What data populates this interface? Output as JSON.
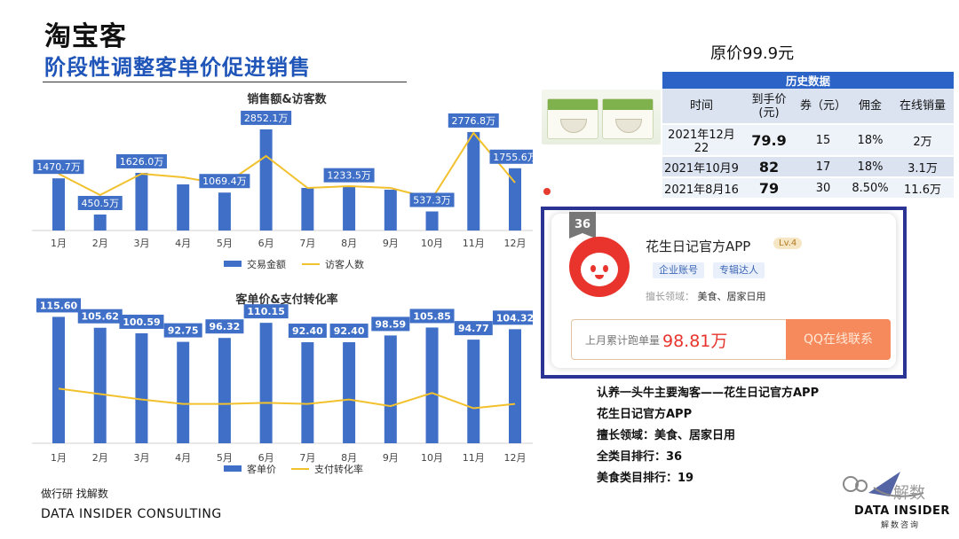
{
  "header": {
    "title": "淘宝客",
    "subtitle": "阶段性调整客单价促进销售"
  },
  "chart_data": [
    {
      "type": "bar",
      "title": "销售额&访客数",
      "categories": [
        "1月",
        "2月",
        "3月",
        "4月",
        "5月",
        "6月",
        "7月",
        "8月",
        "9月",
        "10月",
        "11月",
        "12月"
      ],
      "series": [
        {
          "name": "交易金额",
          "type": "bar",
          "values": [
            1470.7,
            450.5,
            1626.0,
            1300,
            1069.4,
            2852.1,
            1200,
            1233.5,
            1150,
            537.3,
            2776.8,
            1755.6
          ],
          "labels": [
            "1470.7万",
            "450.5万",
            "1626.0万",
            "",
            "1069.4万",
            "2852.1万",
            "",
            "1233.5万",
            "",
            "537.3万",
            "2776.8万",
            "1755.6万"
          ]
        },
        {
          "name": "访客人数",
          "type": "line",
          "values": [
            1600,
            1000,
            1600,
            1500,
            1300,
            2100,
            1200,
            1250,
            1200,
            900,
            2750,
            1350
          ]
        }
      ],
      "colors": {
        "bar": "#3f6fc7",
        "line": "#f2c12e"
      },
      "legend": "bottom",
      "ylim": [
        0,
        3000
      ]
    },
    {
      "type": "bar",
      "title": "客单价&支付转化率",
      "categories": [
        "1月",
        "2月",
        "3月",
        "4月",
        "5月",
        "6月",
        "7月",
        "8月",
        "9月",
        "10月",
        "11月",
        "12月"
      ],
      "series": [
        {
          "name": "客单价",
          "type": "bar",
          "values": [
            115.6,
            105.62,
            100.59,
            92.75,
            96.32,
            110.15,
            92.4,
            92.4,
            98.59,
            105.85,
            94.77,
            104.32
          ],
          "labels": [
            "115.60",
            "105.62",
            "100.59",
            "92.75",
            "96.32",
            "110.15",
            "92.40",
            "92.40",
            "98.59",
            "105.85",
            "94.77",
            "104.32"
          ]
        },
        {
          "name": "支付转化率",
          "type": "line",
          "values": [
            50,
            45,
            40,
            36,
            36,
            37,
            36,
            40,
            34,
            46,
            32,
            36
          ]
        }
      ],
      "colors": {
        "bar": "#3f6fc7",
        "line": "#f2c12e"
      },
      "legend": "bottom",
      "ylim": [
        0,
        120
      ]
    }
  ],
  "price_note": "原价99.9元",
  "history": {
    "caption": "历史数据",
    "headers": [
      "时间",
      "到手价\n(元)",
      "券（元）",
      "佣金",
      "在线销量"
    ],
    "rows": [
      [
        "2021年12月22",
        "79.9",
        "15",
        "18%",
        "2万"
      ],
      [
        "2021年10月9",
        "82",
        "17",
        "18%",
        "3.1万"
      ],
      [
        "2021年8月16",
        "79",
        "30",
        "8.50%",
        "11.6万"
      ]
    ]
  },
  "store": {
    "rank": "36",
    "name": "花生日记官方APP",
    "level": "Lv.4",
    "chips": [
      "企业账号",
      "专辑达人"
    ],
    "domain_label": "擅长领域：",
    "domain_value": "美食、居家日用",
    "sales_label": "上月累计跑单量",
    "sales_value": "98.81万",
    "button": "QQ在线联系"
  },
  "notes": [
    "认养一头牛主要淘客——花生日记官方APP",
    "花生日记官方APP",
    "擅长领域：美食、居家日用",
    "全类目排行：36",
    "美食类目排行：19"
  ],
  "footer": {
    "source": "做行研 找解数",
    "brand": "DATA INSIDER CONSULTING"
  },
  "watermark": {
    "brand": "DATA INSIDER",
    "sub": "解数咨询"
  }
}
